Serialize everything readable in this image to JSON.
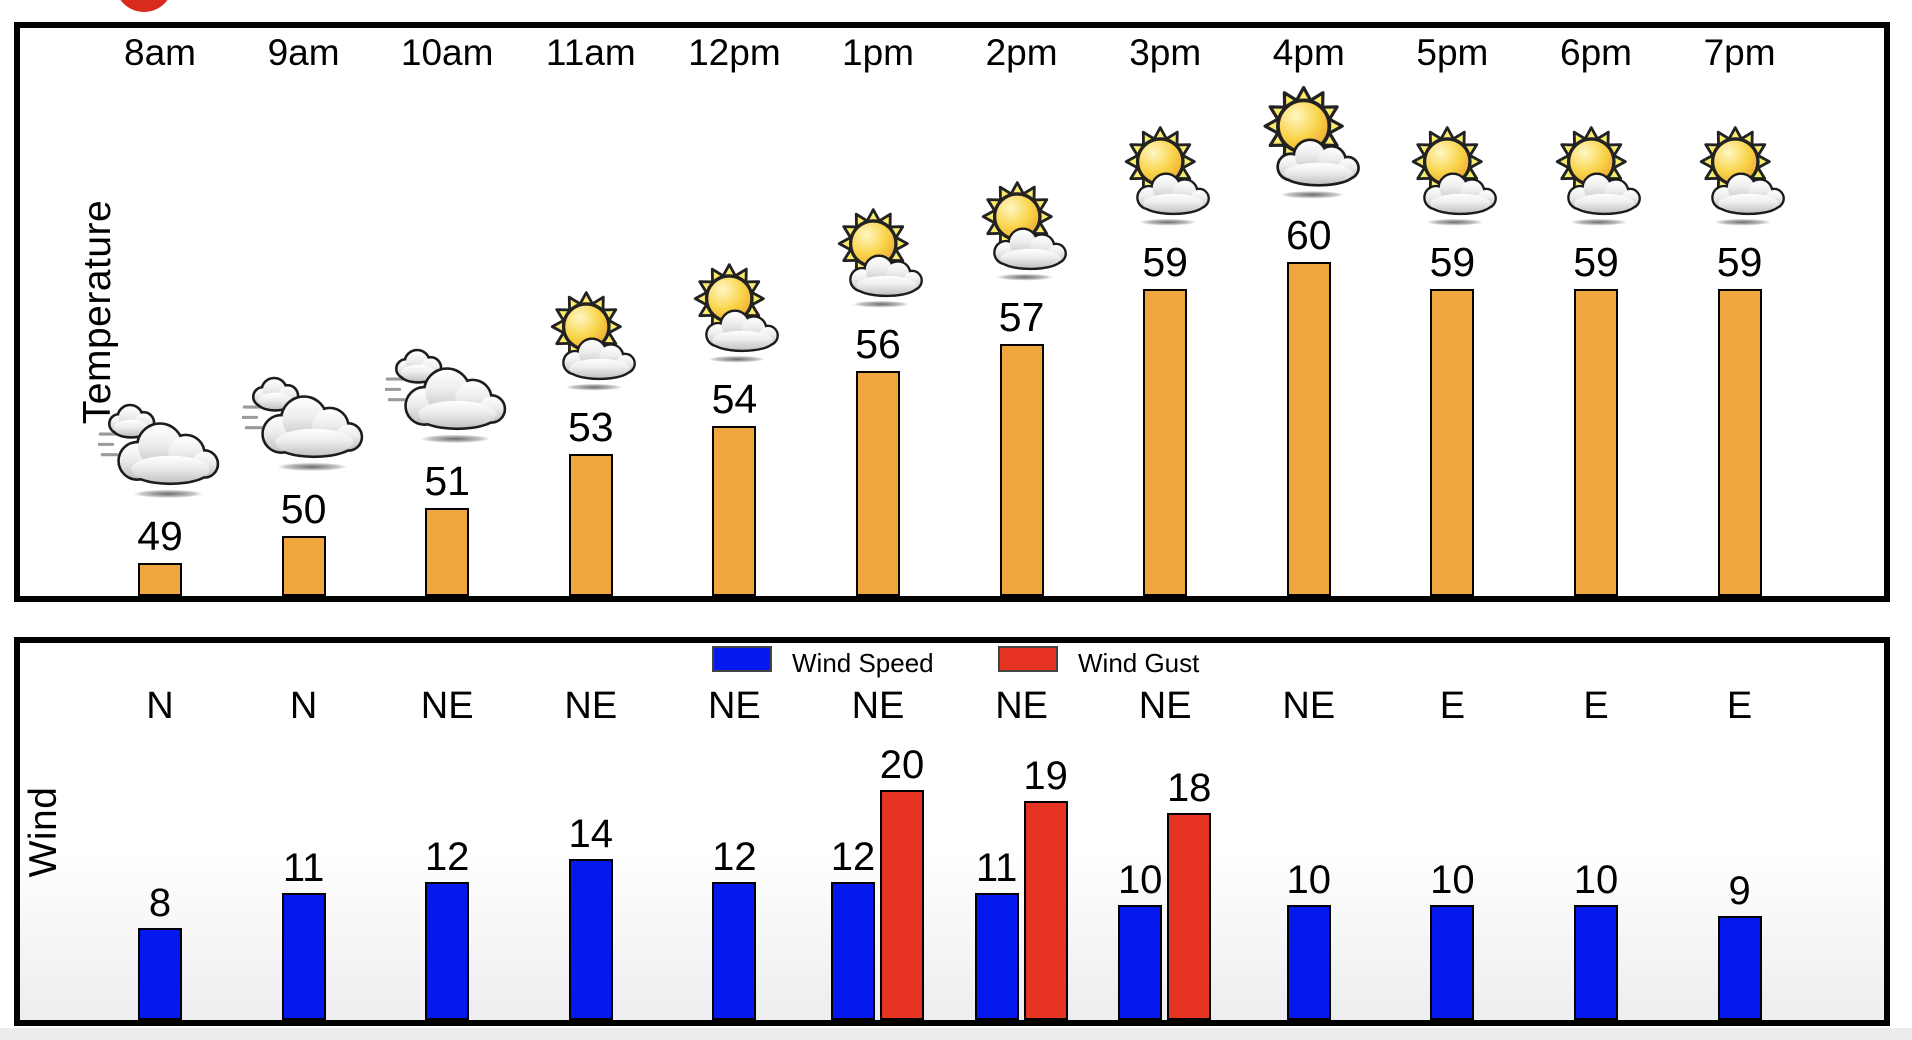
{
  "decorations": {
    "red_dot_color": "#d92a1e",
    "bottom_strip_color": "#ececef"
  },
  "temperature_panel": {
    "axis_label": "Temperature",
    "bar_color": "#efa63d",
    "columns": [
      {
        "time": "8am",
        "temp": 49,
        "icon": "cloudy"
      },
      {
        "time": "9am",
        "temp": 50,
        "icon": "cloudy"
      },
      {
        "time": "10am",
        "temp": 51,
        "icon": "cloudy"
      },
      {
        "time": "11am",
        "temp": 53,
        "icon": "partly-sunny"
      },
      {
        "time": "12pm",
        "temp": 54,
        "icon": "partly-sunny"
      },
      {
        "time": "1pm",
        "temp": 56,
        "icon": "partly-sunny"
      },
      {
        "time": "2pm",
        "temp": 57,
        "icon": "partly-sunny"
      },
      {
        "time": "3pm",
        "temp": 59,
        "icon": "partly-sunny"
      },
      {
        "time": "4pm",
        "temp": 60,
        "icon": "partly-sunny-large"
      },
      {
        "time": "5pm",
        "temp": 59,
        "icon": "partly-sunny"
      },
      {
        "time": "6pm",
        "temp": 59,
        "icon": "partly-sunny"
      },
      {
        "time": "7pm",
        "temp": 59,
        "icon": "partly-sunny"
      }
    ]
  },
  "wind_panel": {
    "axis_label": "Wind",
    "legend": [
      {
        "label": "Wind Speed",
        "color": "#0519ee"
      },
      {
        "label": "Wind Gust",
        "color": "#e73322"
      }
    ],
    "columns": [
      {
        "direction": "N",
        "speed": 8,
        "gust": null
      },
      {
        "direction": "N",
        "speed": 11,
        "gust": null
      },
      {
        "direction": "NE",
        "speed": 12,
        "gust": null
      },
      {
        "direction": "NE",
        "speed": 14,
        "gust": null
      },
      {
        "direction": "NE",
        "speed": 12,
        "gust": null
      },
      {
        "direction": "NE",
        "speed": 12,
        "gust": 20
      },
      {
        "direction": "NE",
        "speed": 11,
        "gust": 19
      },
      {
        "direction": "NE",
        "speed": 10,
        "gust": 18
      },
      {
        "direction": "NE",
        "speed": 10,
        "gust": null
      },
      {
        "direction": "E",
        "speed": 10,
        "gust": null
      },
      {
        "direction": "E",
        "speed": 10,
        "gust": null
      },
      {
        "direction": "E",
        "speed": 9,
        "gust": null
      }
    ]
  },
  "chart_data": [
    {
      "type": "bar",
      "title": "Temperature",
      "categories": [
        "8am",
        "9am",
        "10am",
        "11am",
        "12pm",
        "1pm",
        "2pm",
        "3pm",
        "4pm",
        "5pm",
        "6pm",
        "7pm"
      ],
      "values": [
        49,
        50,
        51,
        53,
        54,
        56,
        57,
        59,
        60,
        59,
        59,
        59
      ],
      "icons": [
        "cloudy",
        "cloudy",
        "cloudy",
        "partly-sunny",
        "partly-sunny",
        "partly-sunny",
        "partly-sunny",
        "partly-sunny",
        "partly-sunny-large",
        "partly-sunny",
        "partly-sunny",
        "partly-sunny"
      ],
      "xlabel": "",
      "ylabel": "Temperature",
      "bar_color": "#efa63d",
      "grid": false,
      "value_labels": true
    },
    {
      "type": "bar",
      "title": "Wind",
      "categories": [
        "8am",
        "9am",
        "10am",
        "11am",
        "12pm",
        "1pm",
        "2pm",
        "3pm",
        "4pm",
        "5pm",
        "6pm",
        "7pm"
      ],
      "series": [
        {
          "name": "Wind Speed",
          "color": "#0519ee",
          "values": [
            8,
            11,
            12,
            14,
            12,
            12,
            11,
            10,
            10,
            10,
            10,
            9
          ]
        },
        {
          "name": "Wind Gust",
          "color": "#e73322",
          "values": [
            null,
            null,
            null,
            null,
            null,
            20,
            19,
            18,
            null,
            null,
            null,
            null
          ]
        }
      ],
      "directions": [
        "N",
        "N",
        "NE",
        "NE",
        "NE",
        "NE",
        "NE",
        "NE",
        "NE",
        "E",
        "E",
        "E"
      ],
      "xlabel": "",
      "ylabel": "Wind",
      "legend_position": "top-center",
      "grid": false,
      "value_labels": true
    }
  ]
}
